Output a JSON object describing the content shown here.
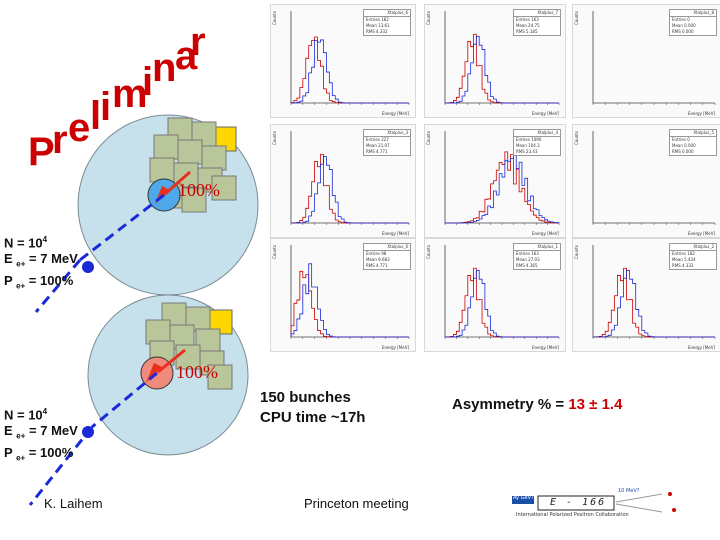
{
  "watermark": {
    "text": "Preliminary",
    "letters": [
      "P",
      "r",
      "e",
      "l",
      "i",
      "m",
      "i",
      "n",
      "a",
      "r",
      "y"
    ]
  },
  "diagram_top": {
    "percent": "100%"
  },
  "diagram_bottom": {
    "percent": "100%"
  },
  "params_top": {
    "n_label": "N = 10",
    "n_exp": "4",
    "e_label": "E",
    "e_sub": "e+",
    "e_value": " = 7 MeV",
    "p_label": "P",
    "p_sub": "e+",
    "p_value": " = 100%"
  },
  "params_bottom": {
    "n_label": "N = 10",
    "n_exp": "4",
    "e_label": "E",
    "e_sub": "e+",
    "e_value": " = 7 MeV",
    "p_label": "P",
    "p_sub": "e+",
    "p_value": " = 100%"
  },
  "histograms": [
    {
      "name": "Xtalplus_6",
      "entries": "Entries 182",
      "mean": "Mean 13.61",
      "rms": "RMS 4.332"
    },
    {
      "name": "Xtalplus_7",
      "entries": "Entries 163",
      "mean": "Mean 24.75",
      "rms": "RMS 5.185"
    },
    {
      "name": "Xtalplus_8",
      "entries": "Entries 0",
      "mean": "Mean 0.000",
      "rms": "RMS 0.000"
    },
    {
      "name": "Xtalplus_3",
      "entries": "Entries 227",
      "mean": "Mean 21.07",
      "rms": "RMS 4.771"
    },
    {
      "name": "Xtalplus_4",
      "entries": "Entries 1090",
      "mean": "Mean 104.3",
      "rms": "RMS 23.43"
    },
    {
      "name": "Xtalplus_5",
      "entries": "Entries 0",
      "mean": "Mean 0.000",
      "rms": "RMS 0.000"
    },
    {
      "name": "Xtalplus_0",
      "entries": "Entries 98",
      "mean": "Mean 9.683",
      "rms": "RMS 4.771"
    },
    {
      "name": "Xtalplus_1",
      "entries": "Entries 163",
      "mean": "Mean 27.03",
      "rms": "RMS 4.365"
    },
    {
      "name": "Xtalplus_2",
      "entries": "Entries 182",
      "mean": "Mean 5.434",
      "rms": "RMS 4.332"
    }
  ],
  "axis_xlabel": "Energy [MeV]",
  "axis_ylabel": "Counts",
  "summary": {
    "bunches": "150 bunches",
    "cpu": "CPU time ~17h"
  },
  "asymmetry": {
    "label": "Asymmetry % = ",
    "value": "13",
    "pm": "±",
    "error": "1.4"
  },
  "footer": {
    "author": "K. Laihem",
    "meeting": "Princeton meeting"
  },
  "logo": {
    "left_text": "Ay GeV?",
    "center_text": "E - 166",
    "right_text": "10 MeV?",
    "subtitle": "International Polarized Positron Collaboration"
  },
  "colors": {
    "red": "#cc0000",
    "blue": "#1a2ad8",
    "arrow": "#e8301f",
    "circle": "#c7e1ec"
  }
}
